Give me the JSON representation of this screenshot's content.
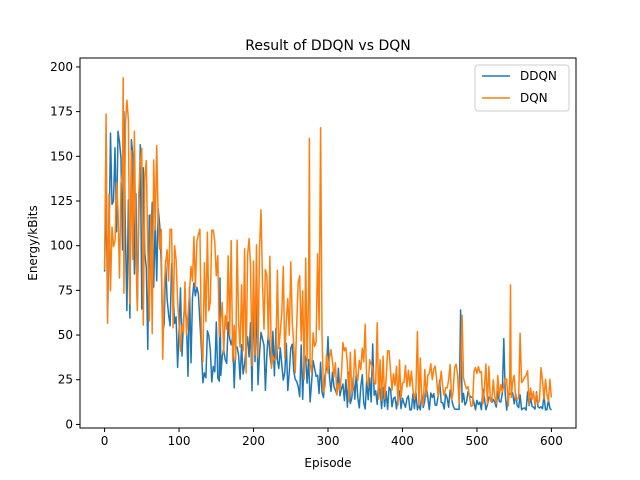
{
  "chart_data": {
    "type": "line",
    "title": "Result of DDQN vs DQN",
    "xlabel": "Episode",
    "ylabel": "Energy/kBits",
    "xlim": [
      -33,
      633
    ],
    "ylim": [
      -2,
      205
    ],
    "xticks": [
      0,
      100,
      200,
      300,
      400,
      500,
      600
    ],
    "yticks": [
      0,
      25,
      50,
      75,
      100,
      125,
      150,
      175,
      200
    ],
    "grid": false,
    "legend_position": "top-right",
    "series": [
      {
        "name": "DDQN",
        "color": "#1f77b4",
        "generator": {
          "start": 0,
          "end": 600,
          "step": 2,
          "seed": 7,
          "amp": 0.55,
          "floor": 8,
          "trend": [
            [
              0,
              120
            ],
            [
              20,
              118
            ],
            [
              50,
              100
            ],
            [
              100,
              55
            ],
            [
              150,
              45
            ],
            [
              200,
              40
            ],
            [
              250,
              32
            ],
            [
              300,
              22
            ],
            [
              350,
              18
            ],
            [
              400,
              12
            ],
            [
              600,
              12
            ]
          ]
        },
        "annotations": [
          [
            8,
            163
          ],
          [
            20,
            158
          ],
          [
            38,
            150
          ],
          [
            155,
            82
          ],
          [
            200,
            71
          ],
          [
            300,
            49
          ],
          [
            360,
            45
          ],
          [
            478,
            64
          ],
          [
            536,
            48
          ],
          [
            600,
            8
          ]
        ]
      },
      {
        "name": "DQN",
        "color": "#ff7f0e",
        "generator": {
          "start": 0,
          "end": 600,
          "step": 2,
          "seed": 19,
          "amp": 0.6,
          "floor": 10,
          "trend": [
            [
              0,
              125
            ],
            [
              20,
              120
            ],
            [
              50,
              108
            ],
            [
              100,
              78
            ],
            [
              150,
              70
            ],
            [
              200,
              65
            ],
            [
              250,
              60
            ],
            [
              280,
              60
            ],
            [
              300,
              33
            ],
            [
              350,
              28
            ],
            [
              400,
              25
            ],
            [
              500,
              22
            ],
            [
              600,
              20
            ]
          ]
        },
        "annotations": [
          [
            25,
            194
          ],
          [
            40,
            164
          ],
          [
            70,
            156
          ],
          [
            210,
            120
          ],
          [
            275,
            160
          ],
          [
            290,
            166
          ],
          [
            350,
            56
          ],
          [
            420,
            52
          ],
          [
            480,
            61
          ],
          [
            545,
            78
          ],
          [
            558,
            51
          ],
          [
            600,
            15
          ]
        ]
      }
    ]
  }
}
